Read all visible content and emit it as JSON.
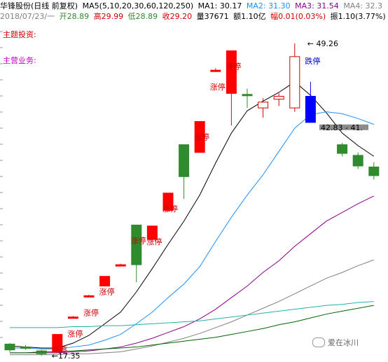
{
  "header": {
    "stock": "华锋股份(日线 前复权)",
    "ma5_label": "MA5(5,10,20,30,60,120,250)",
    "ma1": "MA1: 30.17",
    "ma2": "MA2: 31.30",
    "ma3": "MA3: 31.54",
    "ma4": "MA4: 32.3",
    "date": "2018/07/23/一",
    "open": "开28.89",
    "high": "高29.99",
    "low": "低28.89",
    "close": "收29.20",
    "volume": "量37671",
    "amount": "额1.10亿",
    "change": "幅0.01(0.03%)",
    "amplitude": "振1.10(3.77%)"
  },
  "labels": {
    "theme_invest": "主题投资:",
    "main_business": "主营业务:"
  },
  "watermark": "爱在冰川",
  "colors": {
    "up": "#ff0000",
    "down": "#2e8b2e",
    "limit_down": "#0000ff",
    "ma1": "#000000",
    "ma2": "#1e90ff",
    "ma3": "#8b008b",
    "ma4": "#808080",
    "ma5": "#20b2aa",
    "ma6": "#006400"
  },
  "chart_data": {
    "type": "candlestick",
    "ylim": [
      17,
      51
    ],
    "candles": [
      {
        "o": 18.2,
        "c": 17.6,
        "h": 18.3,
        "l": 17.4,
        "color": "down"
      },
      {
        "o": 17.9,
        "c": 17.9,
        "h": 18.1,
        "l": 17.6,
        "color": "down"
      },
      {
        "o": 17.5,
        "c": 17.2,
        "h": 17.6,
        "l": 17.0,
        "color": "down"
      },
      {
        "o": 17.4,
        "c": 19.2,
        "h": 19.2,
        "l": 17.4,
        "color": "up",
        "note": "涨停"
      },
      {
        "o": 21.0,
        "c": 21.0,
        "h": 21.1,
        "l": 20.9,
        "color": "up",
        "note": "涨停"
      },
      {
        "o": 23.2,
        "c": 23.2,
        "h": 23.3,
        "l": 23.1,
        "color": "up",
        "note": "涨停"
      },
      {
        "o": 24.2,
        "c": 25.2,
        "h": 25.2,
        "l": 24.2,
        "color": "up",
        "note": "涨停"
      },
      {
        "o": 26.4,
        "c": 26.4,
        "h": 26.5,
        "l": 26.3,
        "color": "up"
      },
      {
        "o": 30.5,
        "c": 26.4,
        "h": 30.5,
        "l": 24.6,
        "color": "down",
        "note": "涨停"
      },
      {
        "o": 29.0,
        "c": 30.4,
        "h": 30.4,
        "l": 29.0,
        "color": "up",
        "note": "涨停"
      },
      {
        "o": 32.0,
        "c": 33.8,
        "h": 33.8,
        "l": 32.0,
        "color": "up",
        "note": "涨停"
      },
      {
        "o": 38.8,
        "c": 35.5,
        "h": 38.8,
        "l": 33.2,
        "color": "down"
      },
      {
        "o": 38.0,
        "c": 41.2,
        "h": 41.2,
        "l": 38.0,
        "color": "up",
        "note": "涨停"
      },
      {
        "o": 46.5,
        "c": 46.5,
        "h": 46.7,
        "l": 46.3,
        "color": "up",
        "note": "涨停"
      },
      {
        "o": 48.5,
        "c": 44.1,
        "h": 48.5,
        "l": 40.8,
        "color": "up",
        "note": "涨停"
      },
      {
        "o": 44.0,
        "c": 44.0,
        "h": 44.6,
        "l": 42.6,
        "color": "down"
      },
      {
        "o": 42.6,
        "c": 43.2,
        "h": 43.6,
        "l": 41.6,
        "color": "up"
      },
      {
        "o": 43.5,
        "c": 43.8,
        "h": 44.1,
        "l": 42.8,
        "color": "up"
      },
      {
        "o": 47.9,
        "c": 42.6,
        "h": 49.26,
        "l": 42.2,
        "color": "up"
      },
      {
        "o": 43.8,
        "c": 41.1,
        "h": 45.3,
        "l": 41.1,
        "color": "limit_down",
        "note": "跌停"
      },
      {
        "o": 40.6,
        "c": 40.6,
        "h": 40.6,
        "l": 40.6,
        "color": "gray_line",
        "note": "42.83 - 41."
      },
      {
        "o": 38.8,
        "c": 37.9,
        "h": 39.0,
        "l": 37.6,
        "color": "down"
      },
      {
        "o": 37.7,
        "c": 36.6,
        "h": 38.0,
        "l": 36.3,
        "color": "down"
      },
      {
        "o": 36.5,
        "c": 35.6,
        "h": 37.0,
        "l": 35.2,
        "color": "down"
      }
    ],
    "high_marker": "49.26",
    "low_marker": "17.35",
    "ma_lines": [
      {
        "name": "ma1",
        "values": [
          18.0,
          17.9,
          17.8,
          17.8,
          18.3,
          19.1,
          20.3,
          21.5,
          23.6,
          26.0,
          28.5,
          30.9,
          33.6,
          36.9,
          40.0,
          42.3,
          43.3,
          44.2,
          45.3,
          43.9,
          42.1,
          40.0,
          38.7,
          37.6
        ]
      },
      {
        "name": "ma2",
        "values": [
          17.8,
          17.8,
          17.7,
          17.7,
          17.9,
          18.1,
          18.6,
          19.2,
          20.3,
          21.5,
          23.0,
          24.4,
          26.2,
          28.8,
          31.3,
          33.6,
          35.7,
          38.1,
          40.5,
          41.9,
          42.2,
          42.0,
          41.5,
          40.9
        ]
      },
      {
        "name": "ma3",
        "values": [
          17.3,
          17.3,
          17.3,
          17.3,
          17.4,
          17.5,
          17.7,
          17.9,
          18.3,
          18.8,
          19.4,
          20.0,
          20.8,
          21.8,
          23.0,
          24.2,
          25.6,
          26.8,
          28.3,
          29.6,
          30.9,
          31.8,
          32.7,
          33.5
        ]
      },
      {
        "name": "ma4",
        "values": [
          17.1,
          17.1,
          17.1,
          17.1,
          17.2,
          17.2,
          17.3,
          17.4,
          17.7,
          18.0,
          18.4,
          18.8,
          19.3,
          19.9,
          20.5,
          21.2,
          21.9,
          22.6,
          23.4,
          24.2,
          25.0,
          25.6,
          26.3,
          26.9
        ]
      },
      {
        "name": "ma5",
        "values": [
          19.9,
          19.9,
          19.9,
          19.9,
          20.0,
          20.0,
          20.1,
          20.1,
          20.2,
          20.3,
          20.4,
          20.5,
          20.6,
          20.8,
          21.0,
          21.2,
          21.4,
          21.6,
          21.8,
          22.0,
          22.2,
          22.3,
          22.5,
          22.6
        ]
      },
      {
        "name": "ma6",
        "values": [
          17.3,
          17.3,
          17.4,
          17.4,
          17.5,
          17.6,
          17.7,
          17.8,
          17.9,
          18.1,
          18.3,
          18.5,
          18.7,
          18.9,
          19.2,
          19.5,
          19.8,
          20.2,
          20.5,
          20.9,
          21.3,
          21.6,
          21.9,
          22.2
        ]
      }
    ]
  }
}
